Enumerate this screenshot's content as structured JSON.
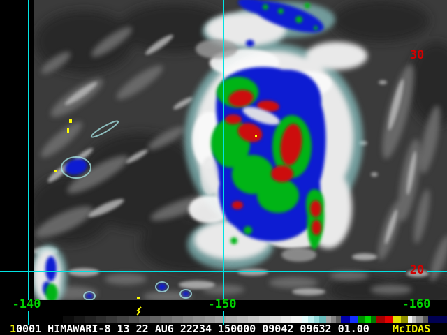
{
  "theme": {
    "grid": "#00e2e2",
    "lat": "#d20000",
    "lon": "#00d200",
    "frame": "#f2f200",
    "text": "#ffffff",
    "brand": "#f2f200"
  },
  "status_bar": {
    "frame_number": "1",
    "info_text": "0001 HIMAWARI-8 13 22 AUG 22234 150000 09042 09632 01.00",
    "brand": "McIDAS"
  },
  "map_overlay": {
    "lat_labels": [
      {
        "text": "30"
      },
      {
        "text": "20"
      }
    ],
    "lon_labels": [
      {
        "text": "-140"
      },
      {
        "text": "-150"
      },
      {
        "text": "-160"
      }
    ]
  },
  "colorbar": {
    "segments": [
      {
        "w": 15.6,
        "c": "#0c0c0c"
      },
      {
        "w": 15.6,
        "c": "#171717"
      },
      {
        "w": 15.6,
        "c": "#222222"
      },
      {
        "w": 15.6,
        "c": "#2d2d2d"
      },
      {
        "w": 15.6,
        "c": "#383838"
      },
      {
        "w": 15.6,
        "c": "#434343"
      },
      {
        "w": 15.6,
        "c": "#4e4e4e"
      },
      {
        "w": 15.6,
        "c": "#595959"
      },
      {
        "w": 15.6,
        "c": "#646464"
      },
      {
        "w": 15.6,
        "c": "#6f6f6f"
      },
      {
        "w": 15.6,
        "c": "#7a7a7a"
      },
      {
        "w": 15.6,
        "c": "#858585"
      },
      {
        "w": 15.6,
        "c": "#909090"
      },
      {
        "w": 15.6,
        "c": "#9b9b9b"
      },
      {
        "w": 15.6,
        "c": "#a6a6a6"
      },
      {
        "w": 15.6,
        "c": "#b1b1b1"
      },
      {
        "w": 15.6,
        "c": "#bcbcbc"
      },
      {
        "w": 15.6,
        "c": "#c7c7c7"
      },
      {
        "w": 15.6,
        "c": "#d2d2d2"
      },
      {
        "w": 15.6,
        "c": "#dddddd"
      },
      {
        "w": 15.6,
        "c": "#e8e8e8"
      },
      {
        "w": 15.6,
        "c": "#f3f3f3"
      },
      {
        "w": 8,
        "c": "#e4fcfc"
      },
      {
        "w": 8,
        "c": "#bceeee"
      },
      {
        "w": 8,
        "c": "#94dada"
      },
      {
        "w": 10,
        "c": "#68bcbc"
      },
      {
        "w": 7,
        "c": "#a4a4a4"
      },
      {
        "w": 7,
        "c": "#848484"
      },
      {
        "w": 7,
        "c": "#5c5c5c"
      },
      {
        "w": 13,
        "c": "#0000aa"
      },
      {
        "w": 12,
        "c": "#1430ff"
      },
      {
        "w": 9,
        "c": "#009000"
      },
      {
        "w": 9,
        "c": "#00dc00"
      },
      {
        "w": 8,
        "c": "#007800"
      },
      {
        "w": 12,
        "c": "#a80000"
      },
      {
        "w": 12,
        "c": "#e40000"
      },
      {
        "w": 11,
        "c": "#e0e000"
      },
      {
        "w": 10,
        "c": "#8f8f00"
      },
      {
        "w": 6,
        "c": "#f4f4f4"
      },
      {
        "w": 6,
        "c": "#c0c0c0"
      },
      {
        "w": 9,
        "c": "#909090"
      },
      {
        "w": 8,
        "c": "#5a5a5a"
      },
      {
        "w": 27,
        "c": "#000052"
      }
    ]
  }
}
